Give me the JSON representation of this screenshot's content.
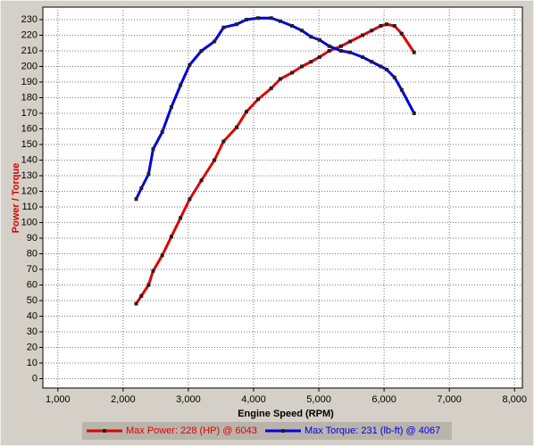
{
  "chart_data": {
    "type": "line",
    "x_label": "Engine Speed (RPM)",
    "y_label": "Power / Torque",
    "x": [
      2200,
      2280,
      2390,
      2460,
      2600,
      2740,
      2880,
      3020,
      3200,
      3400,
      3540,
      3740,
      3890,
      4070,
      4270,
      4410,
      4590,
      4740,
      4880,
      5010,
      5160,
      5340,
      5480,
      5670,
      5810,
      5950,
      6040,
      6160,
      6270,
      6460
    ],
    "series": [
      {
        "name": "Max Power: 228 (HP) @ 6043",
        "color": "#e00000",
        "values": [
          48,
          53,
          60,
          69,
          79,
          91,
          103,
          115,
          127,
          140,
          152,
          161,
          171,
          179,
          186,
          192,
          196,
          200,
          203,
          206,
          210,
          213,
          216,
          220,
          223,
          226,
          227,
          226,
          221,
          209
        ]
      },
      {
        "name": "Max Torque: 231 (lb-ft) @ 4067",
        "color": "#0000e0",
        "values": [
          115,
          122,
          131,
          147,
          158,
          174,
          188,
          201,
          210,
          216,
          225,
          227,
          230,
          231,
          231,
          229,
          226,
          223,
          219,
          217,
          213,
          210,
          209,
          206,
          203,
          200,
          198,
          193,
          185,
          170
        ]
      }
    ],
    "xlim": [
      770,
      8120
    ],
    "ylim": [
      -6,
      238
    ],
    "xticks": [
      {
        "value": 1000,
        "label": "1,000"
      },
      {
        "value": 2000,
        "label": "2,000"
      },
      {
        "value": 3000,
        "label": "3,000"
      },
      {
        "value": 4000,
        "label": "4,000"
      },
      {
        "value": 5000,
        "label": "5,000"
      },
      {
        "value": 6000,
        "label": "6,000"
      },
      {
        "value": 7000,
        "label": "7,000"
      },
      {
        "value": 8000,
        "label": "8,000"
      }
    ],
    "yticks": [
      0,
      10,
      20,
      30,
      40,
      50,
      60,
      70,
      80,
      90,
      100,
      110,
      120,
      130,
      140,
      150,
      160,
      170,
      180,
      190,
      200,
      210,
      220,
      230
    ],
    "grid": true
  }
}
